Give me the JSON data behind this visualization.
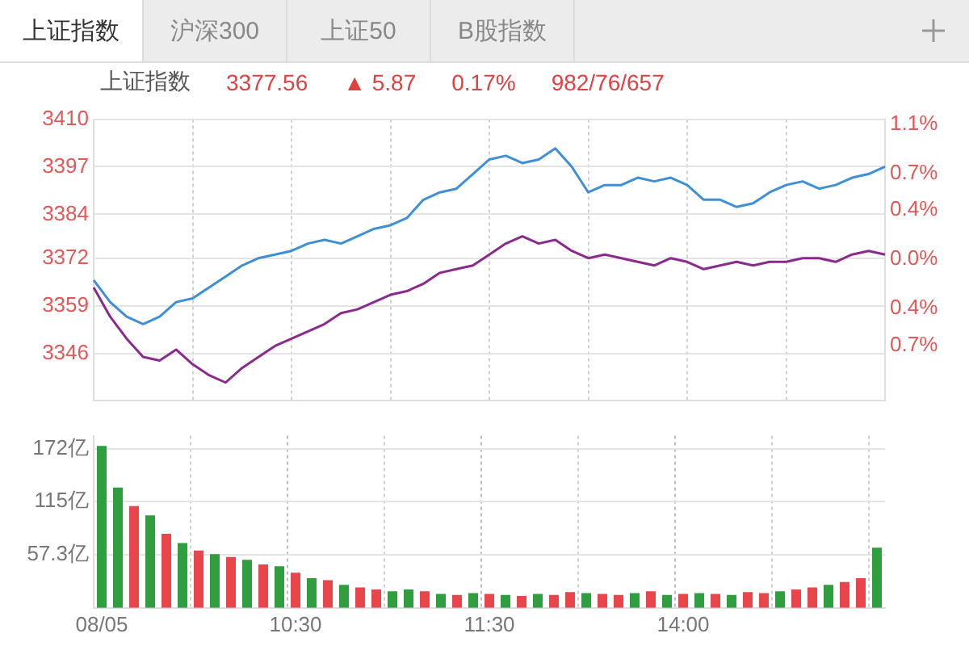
{
  "chart_data": [
    {
      "type": "line",
      "title": "上证指数",
      "annotations": [
        "上证指数",
        "沪深300",
        "上证50",
        "B股指数",
        "3377.56",
        "▲ 5.87",
        "0.17%",
        "982/76/657"
      ],
      "categories": [
        null,
        null,
        null,
        null,
        null,
        null,
        null,
        null,
        null,
        null,
        null,
        null,
        null,
        null,
        null,
        null,
        null,
        null,
        null,
        null,
        null,
        null,
        null,
        null,
        null,
        null,
        null,
        null,
        null,
        null,
        null,
        null,
        null,
        null,
        null,
        null,
        null,
        null,
        null,
        null,
        null,
        null,
        null,
        null,
        null,
        null,
        null,
        null,
        null
      ],
      "series": [
        {
          "color": "#8a2a8c",
          "values": [
            3364,
            3356,
            3350,
            3345,
            3344,
            3347,
            3343,
            3340,
            3338,
            3342,
            3345,
            3348,
            3350,
            3352,
            3354,
            3357,
            3358,
            3360,
            3362,
            3363,
            3365,
            3368,
            3369,
            3370,
            3373,
            3376,
            3378,
            3376,
            3377,
            3374,
            3372,
            3373,
            3372,
            3371,
            3370,
            3372,
            3371,
            3369,
            3370,
            3371,
            3370,
            3371,
            3371,
            3372,
            3372,
            3371,
            3373,
            3374,
            3373
          ]
        },
        {
          "color": "#3f8fd6",
          "values": [
            3366,
            3360,
            3356,
            3354,
            3356,
            3360,
            3361,
            3364,
            3367,
            3370,
            3372,
            3373,
            3374,
            3376,
            3377,
            3376,
            3378,
            3380,
            3381,
            3383,
            3388,
            3390,
            3391,
            3395,
            3399,
            3400,
            3398,
            3399,
            3402,
            3397,
            3390,
            3392,
            3392,
            3394,
            3393,
            3394,
            3392,
            3388,
            3388,
            3386,
            3387,
            3390,
            3392,
            3393,
            3391,
            3392,
            3394,
            3395,
            3397
          ]
        }
      ],
      "ylim": [
        3333,
        3410
      ],
      "yticks": [
        3346,
        3359,
        3372,
        3384,
        3397,
        3410
      ],
      "y2lim": [
        -1.15,
        1.14
      ],
      "y2ticks": [
        {
          "value": -0.7,
          "label": "0.7%"
        },
        {
          "value": -0.4,
          "label": "0.4%"
        },
        {
          "value": 0,
          "label": "0.0%"
        },
        {
          "value": 0.4,
          "label": "0.4%"
        },
        {
          "value": 0.7,
          "label": "0.7%"
        },
        {
          "value": 1.1,
          "label": "1.1%"
        }
      ],
      "grid": true,
      "legend": false,
      "tick_labels": "y",
      "marker": "none",
      "line_style": "solid"
    },
    {
      "type": "bar",
      "categories": [
        "08/05",
        null,
        null,
        null,
        null,
        null,
        null,
        null,
        null,
        null,
        null,
        null,
        "10:30",
        null,
        null,
        null,
        null,
        null,
        null,
        null,
        null,
        null,
        null,
        null,
        "11:30",
        null,
        null,
        null,
        null,
        null,
        null,
        null,
        null,
        null,
        null,
        null,
        "14:00",
        null,
        null,
        null,
        null,
        null,
        null,
        null,
        null,
        null,
        null,
        null,
        null
      ],
      "values": [
        175,
        130,
        110,
        100,
        80,
        70,
        62,
        58,
        55,
        52,
        47,
        45,
        38,
        32,
        30,
        25,
        22,
        20,
        18,
        20,
        18,
        15,
        14,
        16,
        15,
        14,
        13,
        15,
        14,
        17,
        16,
        15,
        14,
        16,
        18,
        14,
        15,
        16,
        15,
        14,
        17,
        16,
        18,
        20,
        22,
        25,
        28,
        32,
        65
      ],
      "colors": [
        "#2e9e3e",
        "#2e9e3e",
        "#e8464a",
        "#2e9e3e",
        "#e8464a",
        "#2e9e3e",
        "#e8464a",
        "#2e9e3e",
        "#e8464a",
        "#2e9e3e",
        "#e8464a",
        "#2e9e3e",
        "#e8464a",
        "#2e9e3e",
        "#e8464a",
        "#2e9e3e",
        "#e8464a",
        "#e8464a",
        "#2e9e3e",
        "#2e9e3e",
        "#e8464a",
        "#2e9e3e",
        "#e8464a",
        "#2e9e3e",
        "#e8464a",
        "#2e9e3e",
        "#e8464a",
        "#2e9e3e",
        "#e8464a",
        "#e8464a",
        "#2e9e3e",
        "#e8464a",
        "#e8464a",
        "#2e9e3e",
        "#e8464a",
        "#2e9e3e",
        "#e8464a",
        "#2e9e3e",
        "#e8464a",
        "#2e9e3e",
        "#e8464a",
        "#e8464a",
        "#2e9e3e",
        "#e8464a",
        "#e8464a",
        "#2e9e3e",
        "#e8464a",
        "#e8464a",
        "#2e9e3e"
      ],
      "ylim": [
        0,
        186
      ],
      "yticks": [
        {
          "value": 57.3,
          "label": "57.3亿"
        },
        {
          "value": 115,
          "label": "115亿"
        },
        {
          "value": 172,
          "label": "172亿"
        }
      ],
      "grid": true,
      "legend": false
    }
  ]
}
